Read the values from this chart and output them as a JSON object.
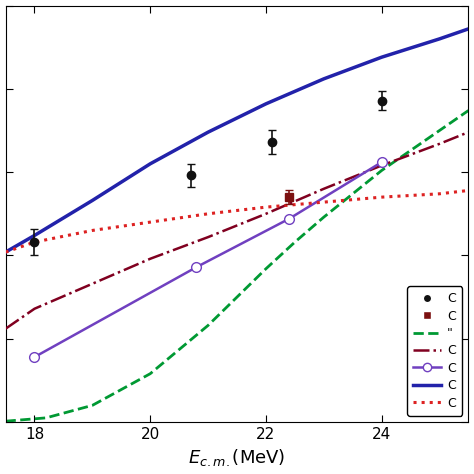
{
  "title": "",
  "xlabel": "E_{c.m.}(MeV)",
  "ylabel": "",
  "xlim": [
    17.5,
    25.5
  ],
  "ylim": [
    0,
    2500
  ],
  "data_black_circles": {
    "x": [
      18.0,
      20.7,
      22.1,
      24.0
    ],
    "y": [
      1080,
      1480,
      1680,
      1930
    ],
    "yerr": [
      80,
      70,
      70,
      55
    ],
    "color": "#111111",
    "marker": "o",
    "markersize": 6
  },
  "data_red_squares": {
    "x": [
      22.4
    ],
    "y": [
      1350
    ],
    "yerr": [
      40
    ],
    "color": "#7B1010",
    "marker": "s",
    "markersize": 6
  },
  "line_green_dashed": {
    "x": [
      17.5,
      18.2,
      19.0,
      20.0,
      21.0,
      22.0,
      22.5,
      23.0,
      24.0,
      25.0,
      25.5
    ],
    "y": [
      5,
      25,
      100,
      290,
      580,
      920,
      1080,
      1230,
      1510,
      1750,
      1870
    ],
    "color": "#009933",
    "linestyle": "--",
    "linewidth": 2.0
  },
  "line_dark_red_dashdot": {
    "x": [
      17.5,
      18.0,
      19.0,
      20.0,
      21.0,
      22.0,
      23.0,
      24.0,
      25.0,
      25.5
    ],
    "y": [
      560,
      680,
      830,
      980,
      1110,
      1250,
      1400,
      1540,
      1670,
      1740
    ],
    "color": "#800020",
    "linestyle": "-.",
    "linewidth": 1.8
  },
  "line_purple_open_circles": {
    "x": [
      18.0,
      20.8,
      22.4,
      24.0
    ],
    "y": [
      390,
      930,
      1220,
      1560
    ],
    "color": "#7040C0",
    "linestyle": "-",
    "linewidth": 1.8,
    "marker": "o",
    "markersize": 7,
    "markerfacecolor": "white"
  },
  "line_blue_solid": {
    "x": [
      17.5,
      18.0,
      19.0,
      20.0,
      21.0,
      22.0,
      23.0,
      24.0,
      25.0,
      25.5
    ],
    "y": [
      1020,
      1120,
      1330,
      1550,
      1740,
      1910,
      2060,
      2190,
      2300,
      2360
    ],
    "color": "#2222AA",
    "linestyle": "-",
    "linewidth": 2.5
  },
  "line_red_dotted": {
    "x": [
      17.5,
      18.0,
      19.0,
      20.0,
      21.0,
      22.0,
      23.0,
      24.0,
      25.0,
      25.5
    ],
    "y": [
      1020,
      1080,
      1150,
      1200,
      1250,
      1290,
      1320,
      1350,
      1370,
      1390
    ],
    "color": "#DD2222",
    "linestyle": ":",
    "linewidth": 2.2
  },
  "background_color": "#ffffff",
  "figsize": [
    4.74,
    4.74
  ],
  "dpi": 100
}
